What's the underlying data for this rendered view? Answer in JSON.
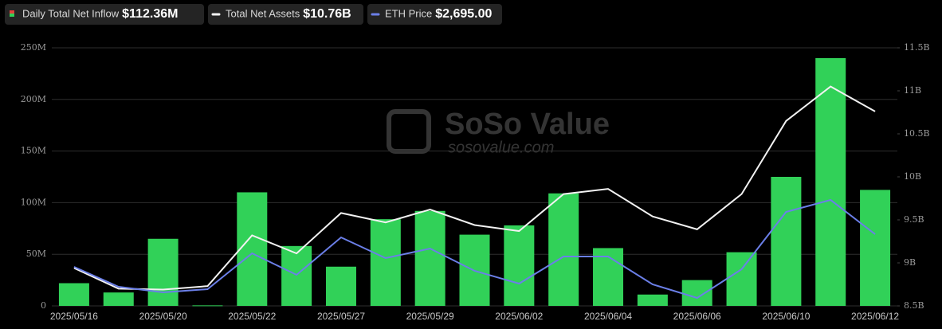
{
  "chart_data": {
    "type": "bar",
    "watermark": "SoSo Value",
    "watermark_sub": "sosovalue.com",
    "categories": [
      "2025/05/16",
      null,
      "2025/05/20",
      null,
      "2025/05/22",
      null,
      "2025/05/27",
      null,
      "2025/05/29",
      null,
      "2025/06/02",
      null,
      "2025/06/04",
      null,
      "2025/06/06",
      null,
      "2025/06/10",
      null,
      "2025/06/12"
    ],
    "ylim": [
      0,
      250
    ],
    "yticks": [
      0,
      {
        "value": 50,
        "label": "50M"
      },
      {
        "value": 100,
        "label": "100M"
      },
      {
        "value": 150,
        "label": "150M"
      },
      {
        "value": 200,
        "label": "200M"
      },
      {
        "value": 250,
        "label": "250M"
      }
    ],
    "y2lim": [
      8.5,
      11.5
    ],
    "y2ticks": [
      {
        "value": 8.5,
        "label": "8.5B"
      },
      {
        "value": 9,
        "label": "9B"
      },
      {
        "value": 9.5,
        "label": "9.5B"
      },
      {
        "value": 10,
        "label": "10B"
      },
      {
        "value": 10.5,
        "label": "10.5B"
      },
      {
        "value": 11,
        "label": "11B"
      },
      {
        "value": 11.5,
        "label": "11.5B"
      }
    ],
    "y3lim": [
      2515,
      3163
    ],
    "grid": true,
    "series": [
      {
        "name": "Daily Total Net Inflow",
        "legend_value": "$112.36M",
        "type": "bar",
        "axis": "y",
        "color": "#31d158",
        "values": [
          22,
          13,
          65,
          0.5,
          110,
          58,
          38,
          84,
          92,
          69,
          78,
          109,
          56,
          11,
          25,
          52,
          125,
          240,
          112.36
        ]
      },
      {
        "name": "Total Net Assets",
        "legend_value": "$10.76B",
        "type": "line",
        "axis": "y2",
        "color": "#f2f2f2",
        "values": [
          8.94,
          8.7,
          8.69,
          8.73,
          9.32,
          9.11,
          9.58,
          9.47,
          9.62,
          9.44,
          9.37,
          9.8,
          9.86,
          9.54,
          9.39,
          9.8,
          10.65,
          11.05,
          10.76
        ]
      },
      {
        "name": "ETH Price",
        "legend_value": "$2,695.00",
        "type": "line",
        "axis": "y3",
        "color": "#6b7fe8",
        "values": [
          2613,
          2563,
          2549,
          2557,
          2647,
          2593,
          2687,
          2635,
          2659,
          2603,
          2571,
          2639,
          2639,
          2569,
          2535,
          2607,
          2751,
          2781,
          2695
        ]
      }
    ]
  }
}
